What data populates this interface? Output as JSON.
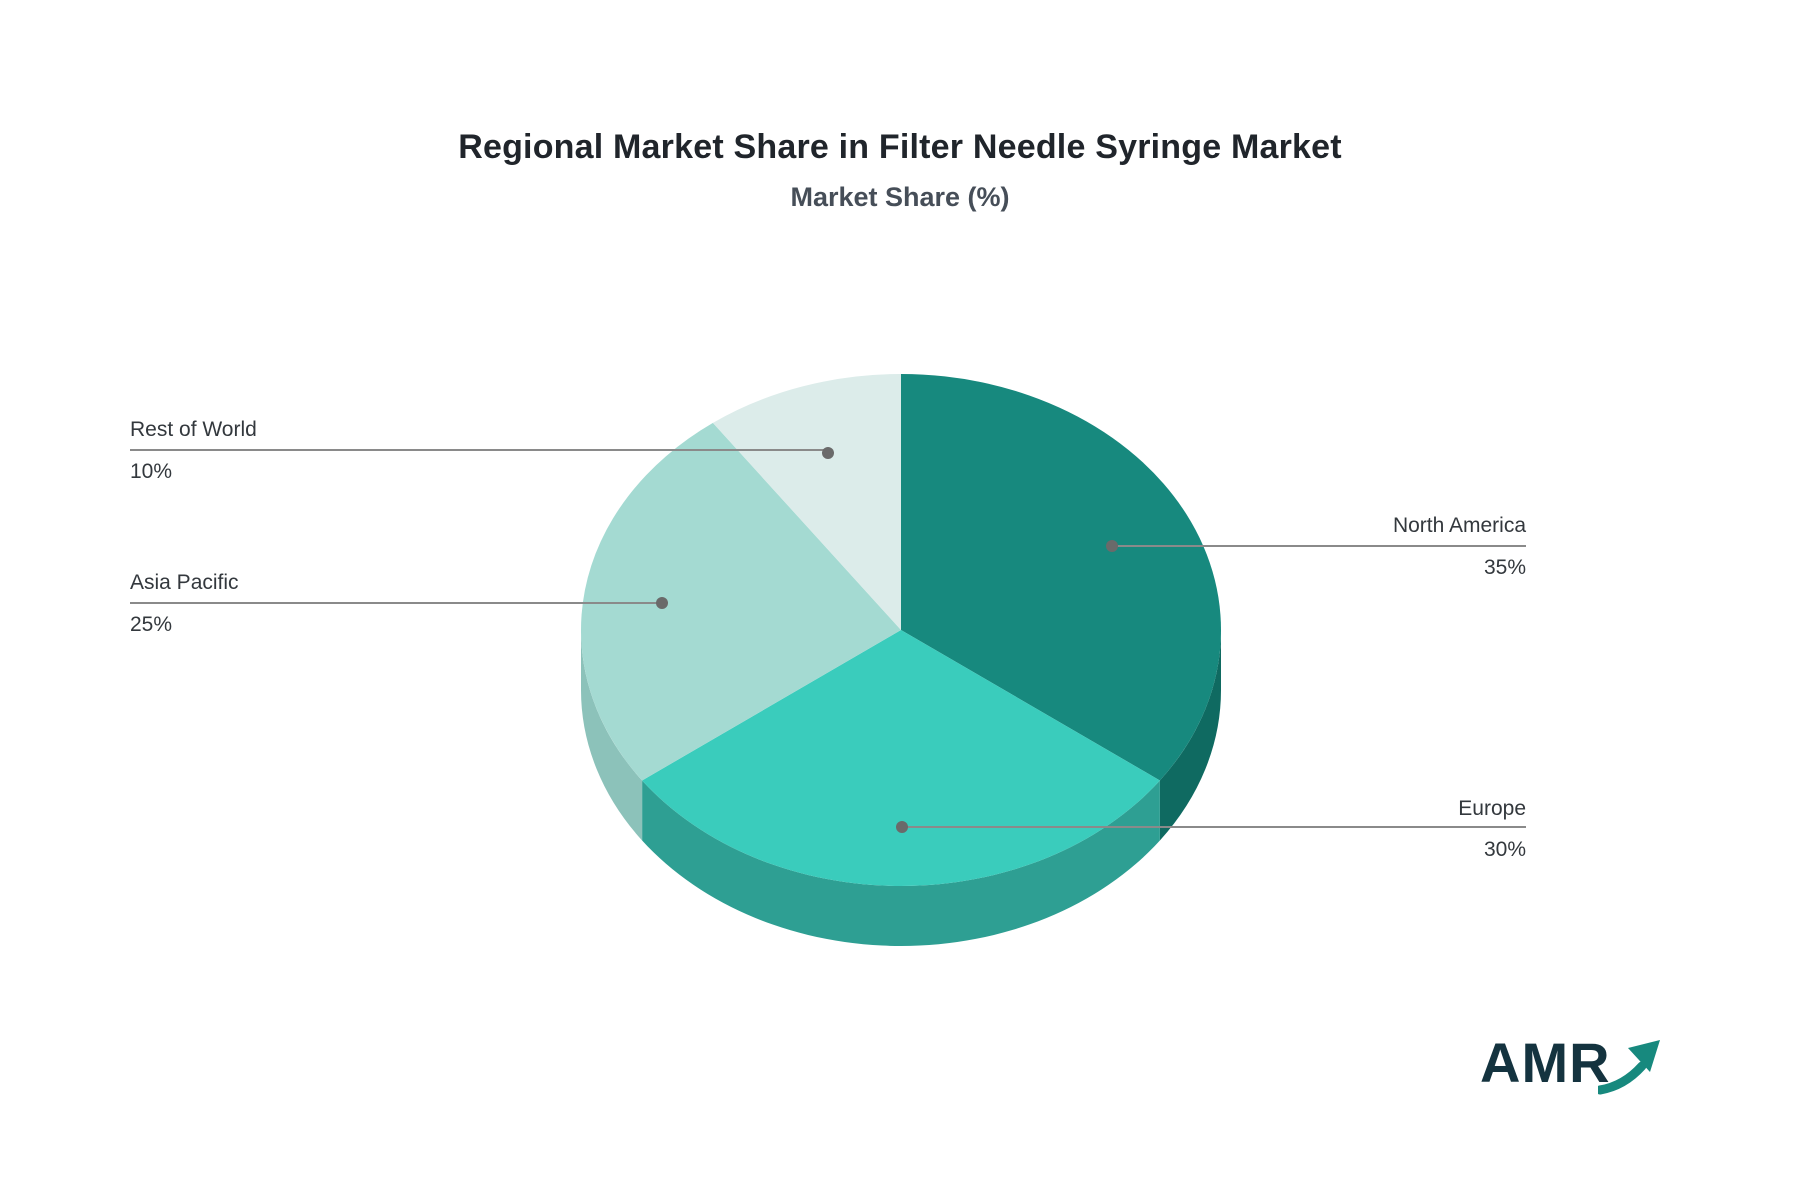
{
  "title": "Regional Market Share in Filter Needle Syringe Market",
  "subtitle": "Market Share (%)",
  "logo": {
    "text": "AMR"
  },
  "chart_data": {
    "type": "pie",
    "title": "Regional Market Share in Filter Needle Syringe Market",
    "subtitle": "Market Share (%)",
    "unit": "%",
    "effect": "3d",
    "direction": "clockwise",
    "start_angle": "12 o'clock",
    "legend_position": "callout-labels",
    "slices": [
      {
        "label": "North America",
        "value": 35,
        "pct_label": "35%",
        "color": "#17897e",
        "side_color": "#0f6a61"
      },
      {
        "label": "Europe",
        "value": 30,
        "pct_label": "30%",
        "color": "#3accbc",
        "side_color": "#2e9f93"
      },
      {
        "label": "Asia Pacific",
        "value": 25,
        "pct_label": "25%",
        "color": "#a4dad2",
        "side_color": "#8cc2ba"
      },
      {
        "label": "Rest of World",
        "value": 10,
        "pct_label": "10%",
        "color": "#dcecea",
        "side_color": "#c5dbd7"
      }
    ]
  }
}
